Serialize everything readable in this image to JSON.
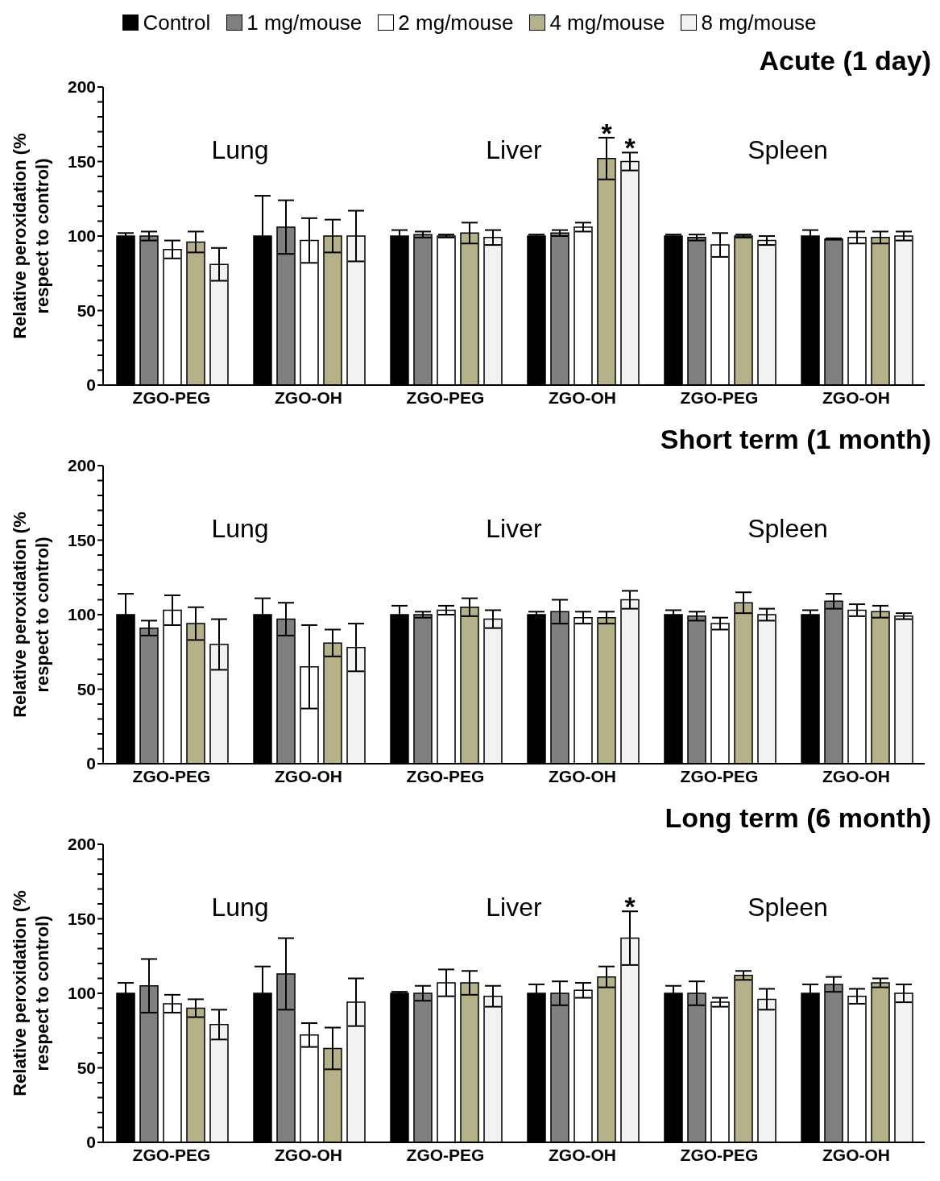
{
  "chart_data": [
    {
      "type": "bar",
      "title": "Acute (1 day)",
      "ylabel": "Relative peroxidation (% respect to control)",
      "legend": "top",
      "categories": [
        "ZGO-PEG",
        "ZGO-OH",
        "ZGO-PEG",
        "ZGO-OH",
        "ZGO-PEG",
        "ZGO-OH"
      ],
      "annotations": [
        "Lung",
        "Liver",
        "Spleen"
      ],
      "ylim": [
        0,
        200
      ],
      "yticks": [
        0,
        {
          "value": 10,
          "label": null
        },
        {
          "value": 20,
          "label": null
        },
        {
          "value": 30,
          "label": null
        },
        {
          "value": 40,
          "label": null
        },
        50,
        {
          "value": 60,
          "label": null
        },
        {
          "value": 70,
          "label": null
        },
        {
          "value": 80,
          "label": null
        },
        {
          "value": 90,
          "label": null
        },
        100,
        {
          "value": 110,
          "label": null
        },
        {
          "value": 120,
          "label": null
        },
        {
          "value": 130,
          "label": null
        },
        {
          "value": 140,
          "label": null
        },
        150,
        {
          "value": 160,
          "label": null
        },
        {
          "value": 170,
          "label": null
        },
        {
          "value": 180,
          "label": null
        },
        {
          "value": 190,
          "label": null
        },
        200
      ],
      "series": [
        {
          "name": "Control",
          "color": "#000000",
          "values": [
            100,
            100,
            100,
            100,
            100,
            100
          ],
          "errors": [
            2,
            27,
            4,
            1,
            1,
            4
          ]
        },
        {
          "name": "1 mg/mouse",
          "color": "#808080",
          "values": [
            100,
            106,
            101,
            102,
            99,
            98
          ],
          "errors": [
            3,
            18,
            2,
            2,
            2,
            0.5
          ]
        },
        {
          "name": "2 mg/mouse",
          "color": "#ffffff",
          "values": [
            91,
            97,
            100,
            106,
            94,
            99
          ],
          "errors": [
            6,
            15,
            1,
            3,
            8,
            4
          ]
        },
        {
          "name": "4 mg/mouse",
          "color": "#b5b28a",
          "values": [
            96,
            100,
            102,
            152,
            100,
            99
          ],
          "errors": [
            7,
            11,
            7,
            14,
            1,
            4
          ],
          "value_labels": [
            null,
            null,
            null,
            "*",
            null,
            null
          ]
        },
        {
          "name": "8 mg/mouse",
          "color": "#f2f2f2",
          "values": [
            81,
            100,
            99,
            150,
            97,
            100
          ],
          "errors": [
            11,
            17,
            5,
            6,
            3,
            3
          ],
          "value_labels": [
            null,
            null,
            null,
            "*",
            null,
            null
          ]
        }
      ]
    },
    {
      "type": "bar",
      "title": "Short term (1 month)",
      "ylabel": "Relative peroxidation (% respect to control)",
      "categories": [
        "ZGO-PEG",
        "ZGO-OH",
        "ZGO-PEG",
        "ZGO-OH",
        "ZGO-PEG",
        "ZGO-OH"
      ],
      "annotations": [
        "Lung",
        "Liver",
        "Spleen"
      ],
      "ylim": [
        0,
        200
      ],
      "yticks": [
        0,
        {
          "value": 10,
          "label": null
        },
        {
          "value": 20,
          "label": null
        },
        {
          "value": 30,
          "label": null
        },
        {
          "value": 40,
          "label": null
        },
        50,
        {
          "value": 60,
          "label": null
        },
        {
          "value": 70,
          "label": null
        },
        {
          "value": 80,
          "label": null
        },
        {
          "value": 90,
          "label": null
        },
        100,
        {
          "value": 110,
          "label": null
        },
        {
          "value": 120,
          "label": null
        },
        {
          "value": 130,
          "label": null
        },
        {
          "value": 140,
          "label": null
        },
        150,
        {
          "value": 160,
          "label": null
        },
        {
          "value": 170,
          "label": null
        },
        {
          "value": 180,
          "label": null
        },
        {
          "value": 190,
          "label": null
        },
        200
      ],
      "series": [
        {
          "color": "#000000",
          "values": [
            100,
            100,
            100,
            100,
            100,
            100
          ],
          "errors": [
            14,
            11,
            6,
            2,
            3,
            3
          ]
        },
        {
          "color": "#808080",
          "values": [
            91,
            97,
            100,
            102,
            99,
            109
          ],
          "errors": [
            5,
            11,
            2,
            8,
            3,
            5
          ]
        },
        {
          "color": "#ffffff",
          "values": [
            103,
            65,
            103,
            98,
            94,
            103
          ],
          "errors": [
            10,
            28,
            3,
            4,
            4,
            4
          ]
        },
        {
          "color": "#b5b28a",
          "values": [
            94,
            81,
            105,
            98,
            108,
            102
          ],
          "errors": [
            11,
            9,
            6,
            4,
            7,
            4
          ]
        },
        {
          "color": "#f2f2f2",
          "values": [
            80,
            78,
            97,
            110,
            100,
            99
          ],
          "errors": [
            17,
            16,
            6,
            6,
            4,
            2
          ]
        }
      ]
    },
    {
      "type": "bar",
      "title": "Long term (6 month)",
      "ylabel": "Relative peroxidation (% respect to control)",
      "categories": [
        "ZGO-PEG",
        "ZGO-OH",
        "ZGO-PEG",
        "ZGO-OH",
        "ZGO-PEG",
        "ZGO-OH"
      ],
      "annotations": [
        "Lung",
        "Liver",
        "Spleen"
      ],
      "ylim": [
        0,
        200
      ],
      "yticks": [
        0,
        {
          "value": 10,
          "label": null
        },
        {
          "value": 20,
          "label": null
        },
        {
          "value": 30,
          "label": null
        },
        {
          "value": 40,
          "label": null
        },
        50,
        {
          "value": 60,
          "label": null
        },
        {
          "value": 70,
          "label": null
        },
        {
          "value": 80,
          "label": null
        },
        {
          "value": 90,
          "label": null
        },
        100,
        {
          "value": 110,
          "label": null
        },
        {
          "value": 120,
          "label": null
        },
        {
          "value": 130,
          "label": null
        },
        {
          "value": 140,
          "label": null
        },
        150,
        {
          "value": 160,
          "label": null
        },
        {
          "value": 170,
          "label": null
        },
        {
          "value": 180,
          "label": null
        },
        {
          "value": 190,
          "label": null
        },
        200
      ],
      "series": [
        {
          "color": "#000000",
          "values": [
            100,
            100,
            100,
            100,
            100,
            100
          ],
          "errors": [
            7,
            18,
            1,
            6,
            5,
            6
          ]
        },
        {
          "color": "#808080",
          "values": [
            105,
            113,
            100,
            100,
            100,
            106
          ],
          "errors": [
            18,
            24,
            5,
            8,
            8,
            5
          ]
        },
        {
          "color": "#ffffff",
          "values": [
            93,
            72,
            107,
            102,
            94,
            98
          ],
          "errors": [
            6,
            8,
            9,
            5,
            3,
            5
          ]
        },
        {
          "color": "#b5b28a",
          "values": [
            90,
            63,
            107,
            111,
            112,
            107
          ],
          "errors": [
            6,
            14,
            8,
            7,
            3,
            3
          ]
        },
        {
          "color": "#f2f2f2",
          "values": [
            79,
            94,
            98,
            137,
            96,
            100
          ],
          "errors": [
            10,
            16,
            7,
            18,
            7,
            6
          ],
          "value_labels": [
            null,
            null,
            null,
            "*",
            null,
            null
          ]
        }
      ]
    }
  ]
}
